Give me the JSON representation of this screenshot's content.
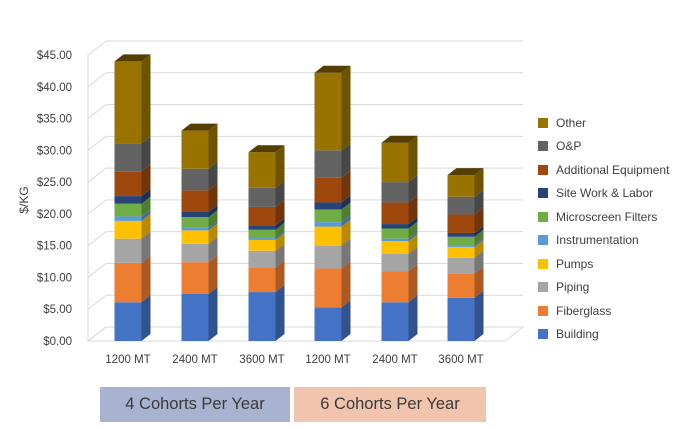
{
  "chart_data": {
    "type": "bar",
    "stacked": true,
    "ylabel": "$/KG",
    "ylim": [
      0,
      45
    ],
    "yticks": [
      "$0.00",
      "$5.00",
      "$10.00",
      "$15.00",
      "$20.00",
      "$25.00",
      "$30.00",
      "$35.00",
      "$40.00",
      "$45.00"
    ],
    "categories": [
      "1200 MT",
      "2400 MT",
      "3600 MT",
      "1200 MT",
      "2400 MT",
      "3600 MT"
    ],
    "groups": [
      {
        "label": "4 Cohorts Per Year",
        "color": "#a8b3d2"
      },
      {
        "label": "6 Cohorts Per Year",
        "color": "#f0c4ad"
      }
    ],
    "series": [
      {
        "name": "Building",
        "color": "#4472c4",
        "values": [
          6.1,
          7.4,
          7.7,
          5.3,
          6.1,
          6.8
        ]
      },
      {
        "name": "Fiberglass",
        "color": "#ed7d31",
        "values": [
          6.2,
          5.0,
          3.9,
          6.1,
          4.9,
          3.8
        ]
      },
      {
        "name": "Piping",
        "color": "#a5a5a5",
        "values": [
          3.8,
          2.9,
          2.6,
          3.6,
          2.7,
          2.5
        ]
      },
      {
        "name": "Pumps",
        "color": "#ffc000",
        "values": [
          2.8,
          2.1,
          1.7,
          3.0,
          2.0,
          1.7
        ]
      },
      {
        "name": "Instrumentation",
        "color": "#5b9bd5",
        "values": [
          0.7,
          0.4,
          0.3,
          0.7,
          0.4,
          0.3
        ]
      },
      {
        "name": "Microscreen Filters",
        "color": "#70ad47",
        "values": [
          2.0,
          1.7,
          1.3,
          2.0,
          1.6,
          1.3
        ]
      },
      {
        "name": "Site Work & Labor",
        "color": "#264478",
        "values": [
          1.2,
          0.8,
          0.7,
          1.1,
          0.7,
          0.6
        ]
      },
      {
        "name": "Additional Equipment",
        "color": "#9e480e",
        "values": [
          3.9,
          3.4,
          2.9,
          3.9,
          3.4,
          2.9
        ]
      },
      {
        "name": "O&P",
        "color": "#636363",
        "values": [
          4.4,
          3.4,
          3.0,
          4.3,
          3.2,
          2.8
        ]
      },
      {
        "name": "Other",
        "color": "#997300",
        "values": [
          12.9,
          6.0,
          5.6,
          12.2,
          6.2,
          3.4
        ]
      }
    ]
  }
}
